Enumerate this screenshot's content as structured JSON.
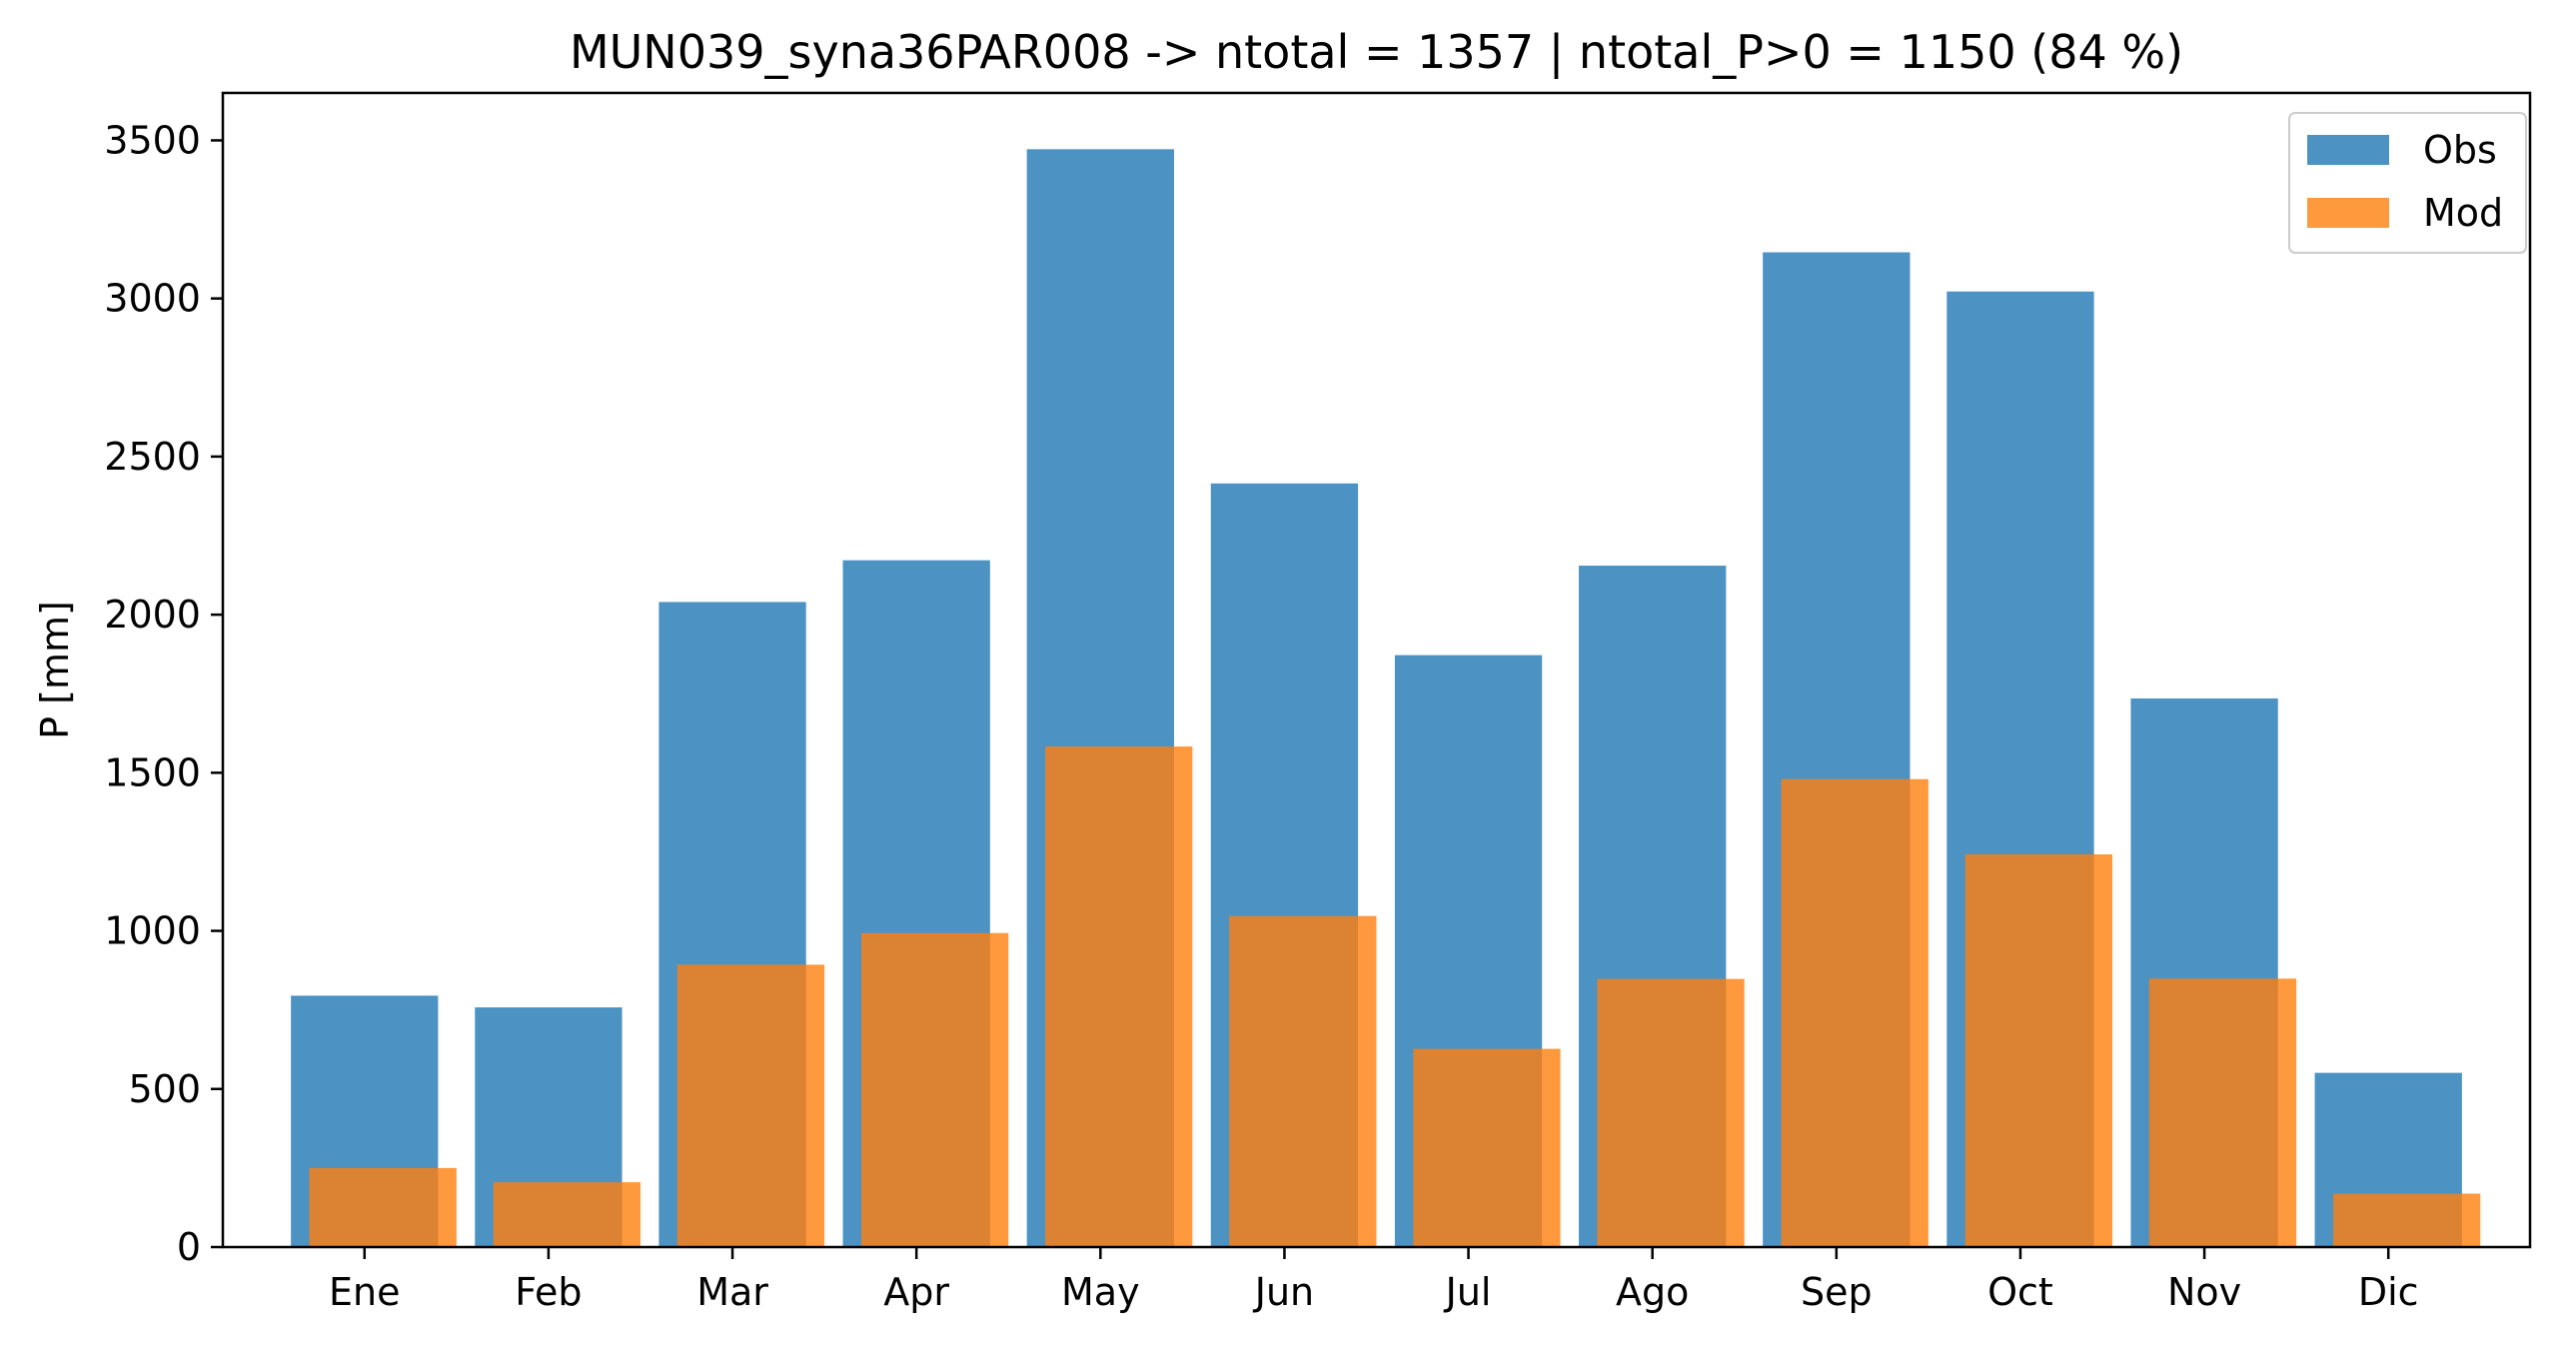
{
  "chart_data": {
    "type": "bar",
    "title": "MUN039_syna36PAR008 -> ntotal = 1357 | ntotal_P>0 = 1150 (84 %)",
    "xlabel": "",
    "ylabel": "P [mm]",
    "ylim": [
      0,
      3650
    ],
    "yticks": [
      0,
      500,
      1000,
      1500,
      2000,
      2500,
      3000,
      3500
    ],
    "categories": [
      "Ene",
      "Feb",
      "Mar",
      "Apr",
      "May",
      "Jun",
      "Jul",
      "Ago",
      "Sep",
      "Oct",
      "Nov",
      "Dic"
    ],
    "series": [
      {
        "name": "Obs",
        "color": "#1f77b4",
        "opacity": 0.8,
        "values": [
          795,
          758,
          2040,
          2172,
          3472,
          2415,
          1872,
          2155,
          3146,
          3022,
          1735,
          551
        ]
      },
      {
        "name": "Mod",
        "color": "#ff7f0e",
        "opacity": 0.8,
        "values": [
          250,
          205,
          893,
          993,
          1583,
          1047,
          627,
          848,
          1480,
          1242,
          849,
          169
        ]
      }
    ],
    "legend": "top-right",
    "grid": false
  }
}
